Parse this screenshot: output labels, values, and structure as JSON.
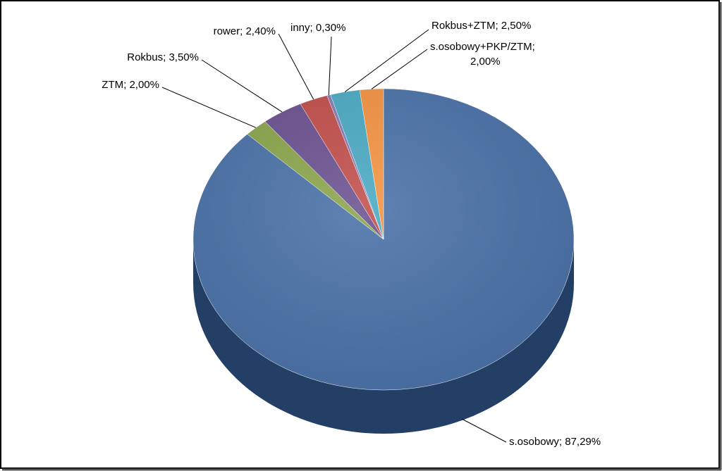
{
  "chart_data": {
    "type": "pie",
    "categories": [
      "s.osobowy",
      "ZTM",
      "Rokbus",
      "rower",
      "inny",
      "Rokbus+ZTM",
      "s.osobowy+PKP/ZTM"
    ],
    "values": [
      87.29,
      2.0,
      3.5,
      2.4,
      0.3,
      2.5,
      2.0
    ],
    "value_labels": [
      "87,29%",
      "2,00%",
      "3,50%",
      "2,40%",
      "0,30%",
      "2,50%",
      "2,00%"
    ],
    "label_separator": "; ",
    "colors": [
      "#4a72a8",
      "#8ba64c",
      "#6c5290",
      "#c24f4b",
      "#8a7cb4",
      "#4aaac4",
      "#f49342"
    ]
  }
}
